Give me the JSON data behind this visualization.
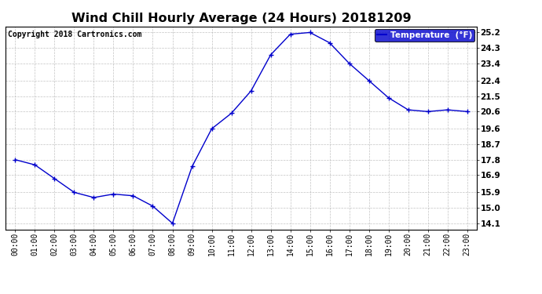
{
  "title": "Wind Chill Hourly Average (24 Hours) 20181209",
  "copyright_text": "Copyright 2018 Cartronics.com",
  "legend_label": "Temperature  (°F)",
  "x_labels": [
    "00:00",
    "01:00",
    "02:00",
    "03:00",
    "04:00",
    "05:00",
    "06:00",
    "07:00",
    "08:00",
    "09:00",
    "10:00",
    "11:00",
    "12:00",
    "13:00",
    "14:00",
    "15:00",
    "16:00",
    "17:00",
    "18:00",
    "19:00",
    "20:00",
    "21:00",
    "22:00",
    "23:00"
  ],
  "y_values": [
    17.8,
    17.5,
    16.7,
    15.9,
    15.6,
    15.8,
    15.7,
    15.1,
    14.1,
    17.4,
    19.6,
    20.5,
    21.8,
    23.9,
    25.1,
    25.2,
    24.6,
    23.4,
    22.4,
    21.4,
    20.7,
    20.6,
    20.7,
    20.6
  ],
  "y_ticks": [
    14.1,
    15.0,
    15.9,
    16.9,
    17.8,
    18.7,
    19.6,
    20.6,
    21.5,
    22.4,
    23.4,
    24.3,
    25.2
  ],
  "y_min": 13.75,
  "y_max": 25.55,
  "line_color": "#0000CC",
  "marker_color": "#0000CC",
  "grid_color": "#AAAAAA",
  "bg_color": "#FFFFFF",
  "title_fontsize": 11.5,
  "copyright_fontsize": 7,
  "legend_bg": "#0000CC",
  "legend_text_color": "#FFFFFF"
}
